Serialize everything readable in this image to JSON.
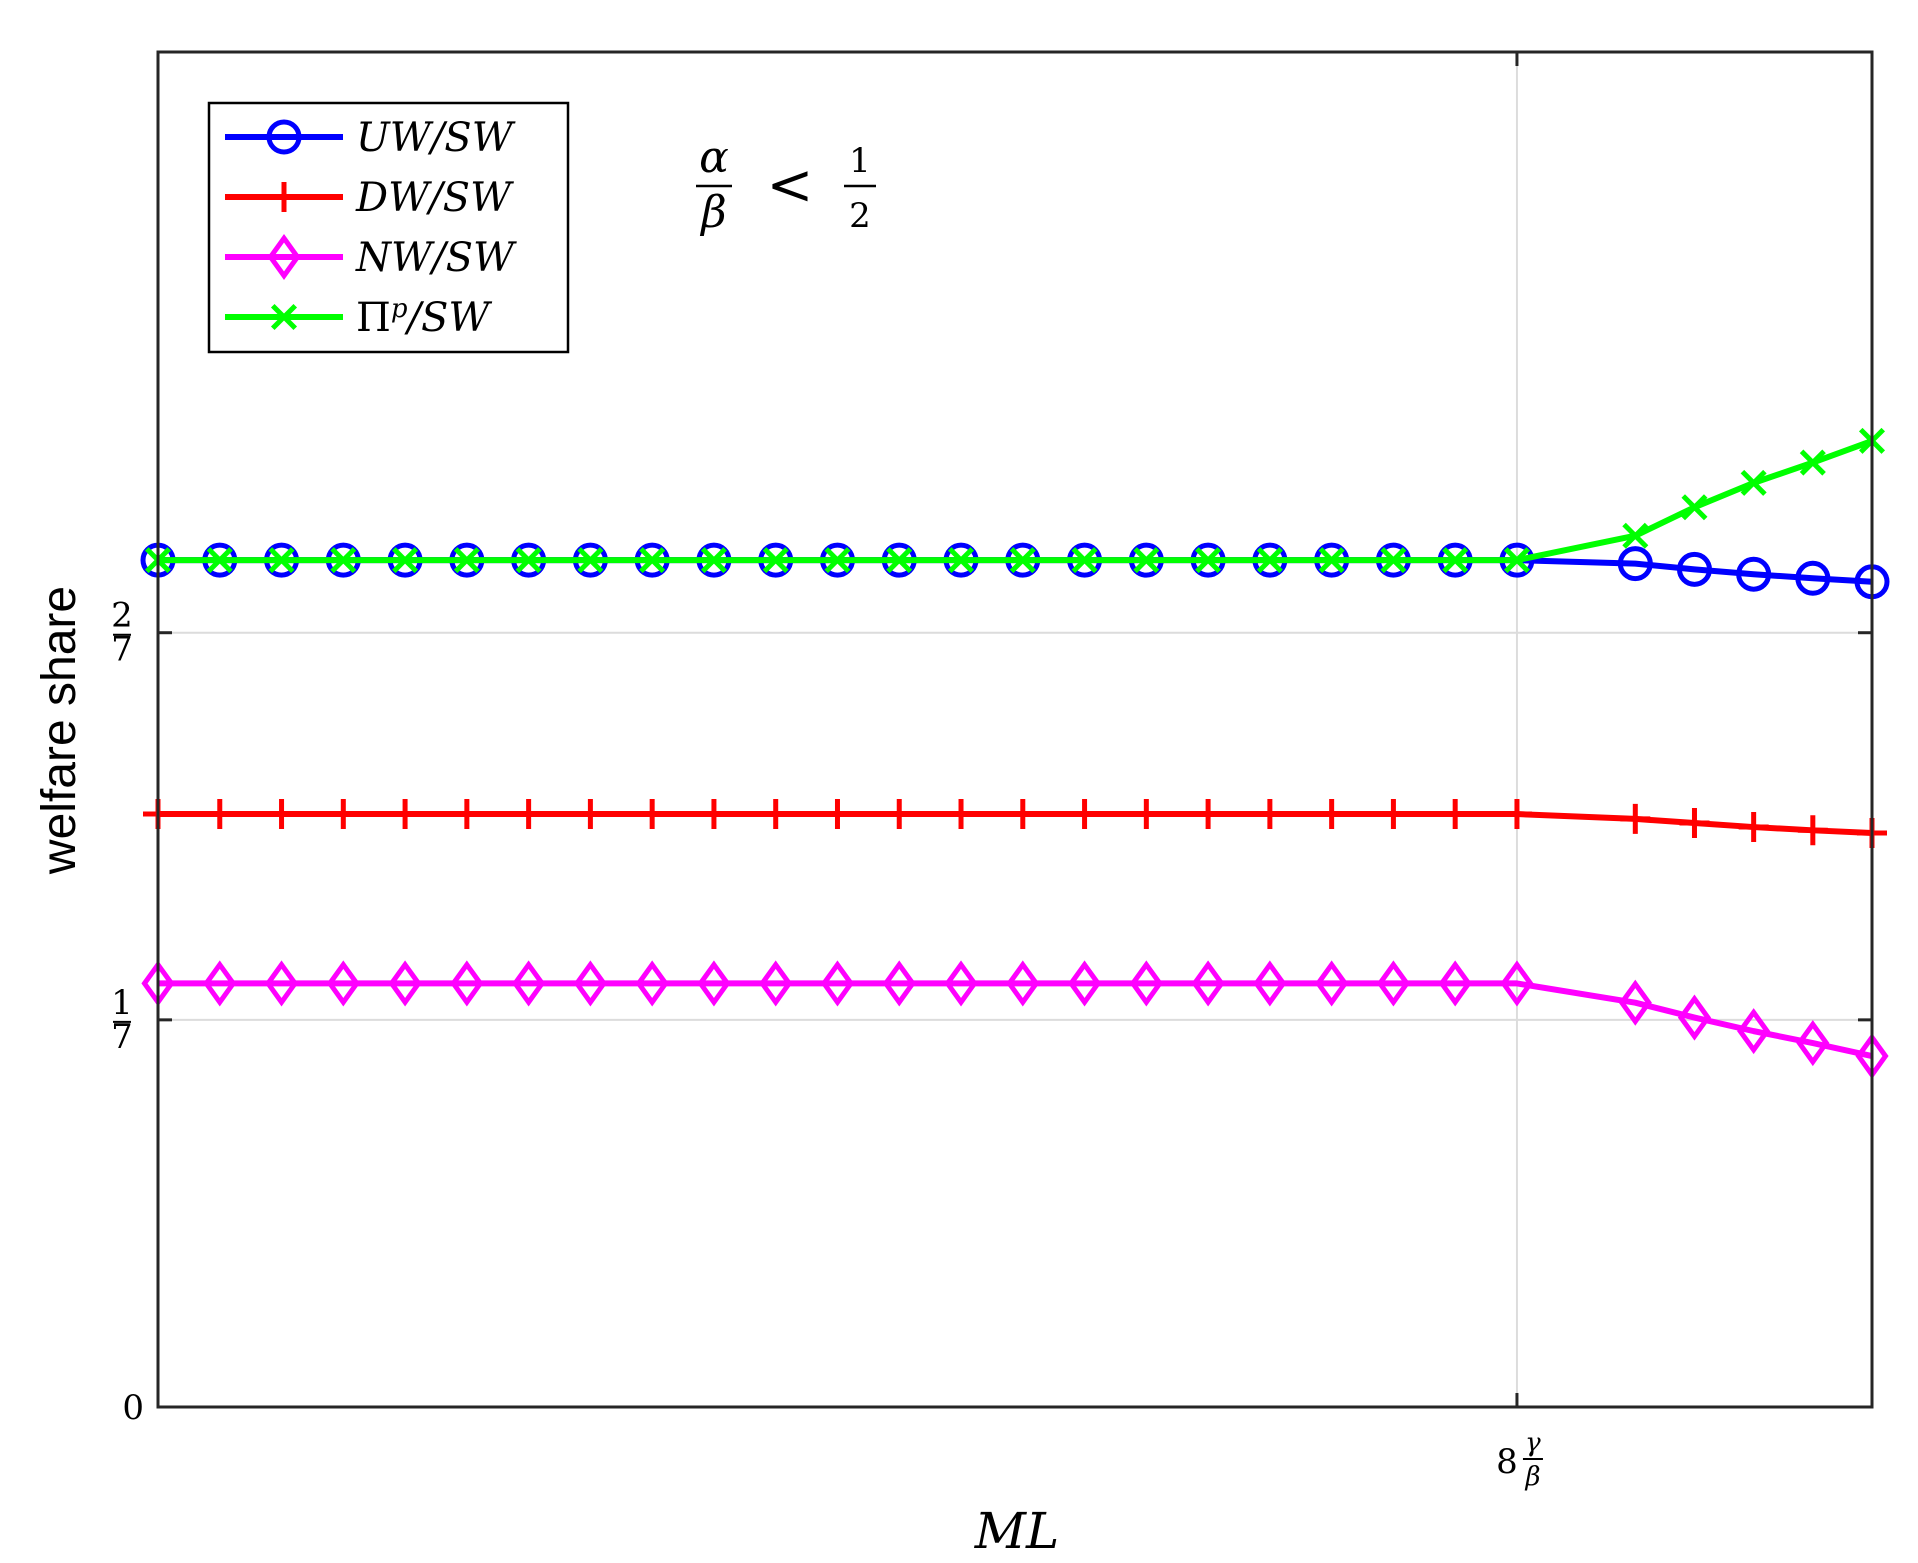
{
  "chart_data": {
    "type": "line",
    "title": "",
    "xlabel": "ML",
    "ylabel": "welfare share",
    "annotation": {
      "lhs_num": "α",
      "lhs_den": "β",
      "op": "<",
      "rhs_num": "1",
      "rhs_den": "2"
    },
    "ylim": [
      0,
      0.5
    ],
    "xlim": [
      0,
      28
    ],
    "grid": true,
    "legend_position": "top-left",
    "y_ticks": [
      {
        "value": 0,
        "label": "0"
      },
      {
        "value": 0.142857,
        "num": "1",
        "den": "7"
      },
      {
        "value": 0.285714,
        "num": "2",
        "den": "7"
      }
    ],
    "x_ticks": [
      {
        "value": 22.2,
        "int": "8",
        "num": "γ",
        "den": "β"
      }
    ],
    "x": [
      0,
      1,
      2,
      3,
      4,
      5,
      6,
      7,
      8,
      9,
      10,
      11,
      12,
      13,
      14,
      15,
      16,
      17,
      18,
      19,
      20,
      21,
      22,
      23,
      24,
      25,
      26,
      27,
      28
    ],
    "series": [
      {
        "name": "UW/SW",
        "color": "#0000ff",
        "marker": "circle",
        "values": [
          0.3125,
          0.3125,
          0.3125,
          0.3125,
          0.3125,
          0.3125,
          0.3125,
          0.3125,
          0.3125,
          0.3125,
          0.3125,
          0.3125,
          0.3125,
          0.3125,
          0.3125,
          0.3125,
          0.3125,
          0.3125,
          0.3125,
          0.3125,
          0.3125,
          0.3125,
          0.3125,
          null,
          0.3112,
          0.3091,
          0.3073,
          0.3058,
          0.3045
        ]
      },
      {
        "name": "DW/SW",
        "color": "#ff0000",
        "marker": "plus",
        "values": [
          0.2188,
          0.2188,
          0.2188,
          0.2188,
          0.2188,
          0.2188,
          0.2188,
          0.2188,
          0.2188,
          0.2188,
          0.2188,
          0.2188,
          0.2188,
          0.2188,
          0.2188,
          0.2188,
          0.2188,
          0.2188,
          0.2188,
          0.2188,
          0.2188,
          0.2188,
          0.2188,
          null,
          0.217,
          0.2155,
          0.214,
          0.2128,
          0.2118
        ]
      },
      {
        "name": "NW/SW",
        "color": "#ff00ff",
        "marker": "diamond",
        "values": [
          0.1563,
          0.1563,
          0.1563,
          0.1563,
          0.1563,
          0.1563,
          0.1563,
          0.1563,
          0.1563,
          0.1563,
          0.1563,
          0.1563,
          0.1563,
          0.1563,
          0.1563,
          0.1563,
          0.1563,
          0.1563,
          0.1563,
          0.1563,
          0.1563,
          0.1563,
          0.1563,
          null,
          0.1492,
          0.1437,
          0.1387,
          0.1343,
          0.1295
        ]
      },
      {
        "name": "Π^p/SW",
        "color": "#00ff00",
        "marker": "x",
        "values": [
          0.3125,
          0.3125,
          0.3125,
          0.3125,
          0.3125,
          0.3125,
          0.3125,
          0.3125,
          0.3125,
          0.3125,
          0.3125,
          0.3125,
          0.3125,
          0.3125,
          0.3125,
          0.3125,
          0.3125,
          0.3125,
          0.3125,
          0.3125,
          0.3125,
          0.3125,
          0.3125,
          null,
          0.3215,
          0.332,
          0.341,
          0.3485,
          0.3565
        ]
      }
    ],
    "x_override": {
      "23": 23.0
    }
  }
}
